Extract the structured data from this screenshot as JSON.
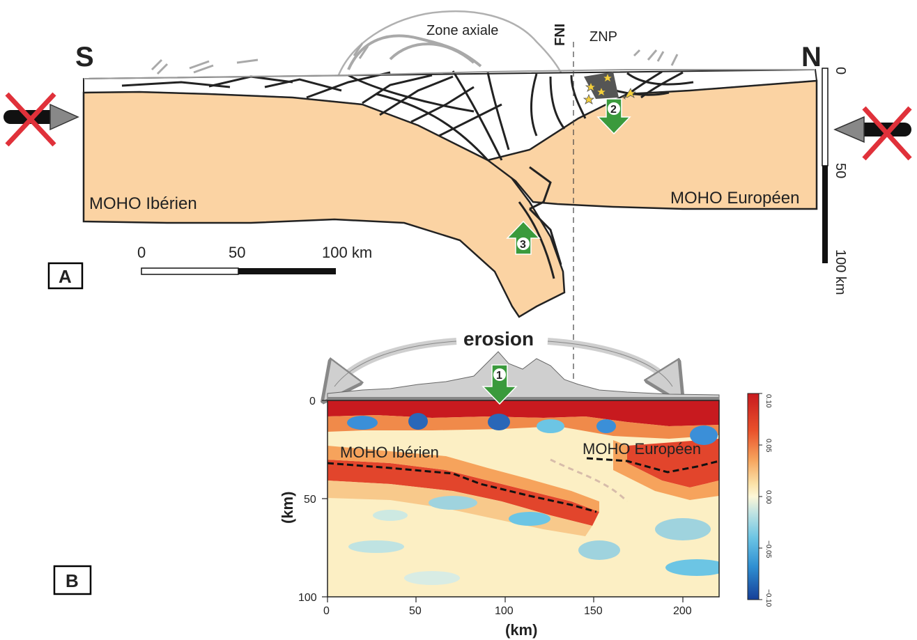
{
  "section": {
    "south_label": "S",
    "north_label": "N",
    "zone_axiale_label": "Zone axiale",
    "fni_label": "FNI",
    "znp_label": "ZNP",
    "moho_iberien_label": "MOHO Ibérien",
    "moho_europeen_label": "MOHO Européen",
    "panel_label": "A",
    "scale_bar": {
      "tick0": "0",
      "tick50": "50",
      "tick100": "100 km"
    },
    "depth_scale": {
      "tick0": "0",
      "tick50": "50",
      "tick100": "100 km"
    },
    "arrows": {
      "a1": "1",
      "a2": "2",
      "a3": "3"
    },
    "colors": {
      "crust_mantle": "#fbd3a3",
      "push_arrow_cross": "#e0313a",
      "uplift_arrow": "#3a9a3c"
    }
  },
  "tomography": {
    "erosion_label": "erosion",
    "panel_label": "B",
    "moho_iberien_label": "MOHO Ibérien",
    "moho_europeen_label": "MOHO Européen",
    "x_axis_label": "(km)",
    "y_axis_label": "(km)",
    "x_ticks": [
      "0",
      "50",
      "100",
      "150",
      "200"
    ],
    "y_ticks": [
      "0",
      "50",
      "100"
    ],
    "colorbar_ticks": [
      "0.10",
      "0.05",
      "0.00",
      "−0.05",
      "−0.10"
    ]
  }
}
